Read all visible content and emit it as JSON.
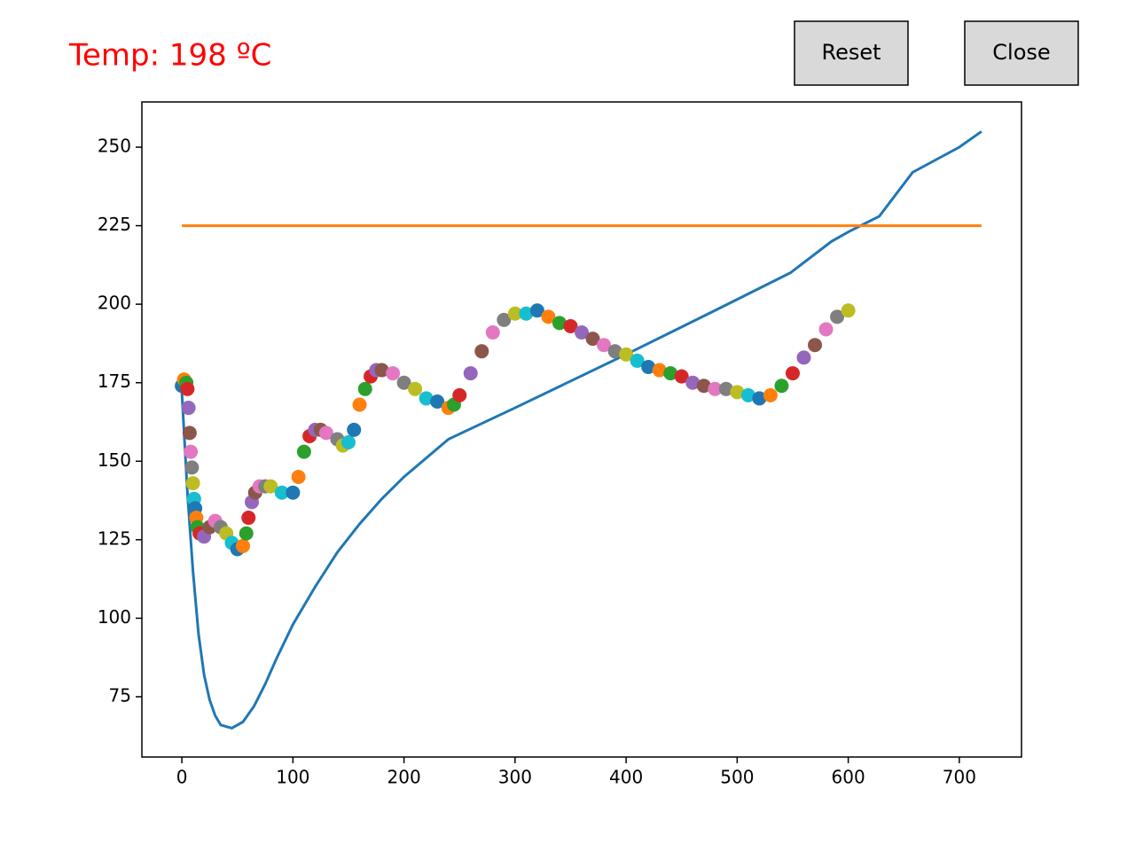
{
  "buttons": [
    "Reset",
    "Close"
  ],
  "chart_data": {
    "type": "line",
    "title": "Temp: 198 ºC",
    "title_color": "#ff0000",
    "xlim": [
      -36,
      756
    ],
    "ylim": [
      55.8,
      264.4
    ],
    "xticks": [
      0,
      100,
      200,
      300,
      400,
      500,
      600,
      700
    ],
    "yticks": [
      75,
      100,
      125,
      150,
      175,
      200,
      225,
      250
    ],
    "grid": false,
    "series": [
      {
        "type": "line",
        "color": "#1f77b4",
        "x": [
          0,
          5,
          10,
          15,
          20,
          25,
          30,
          35,
          45,
          55,
          65,
          75,
          85,
          100,
          120,
          140,
          160,
          180,
          200,
          220,
          240,
          300,
          400,
          480,
          548,
          585,
          600,
          628,
          658,
          700,
          720
        ],
        "values": [
          172,
          140,
          115,
          95,
          82,
          74,
          69,
          66,
          65,
          67,
          72,
          79,
          87,
          98,
          110,
          121,
          130,
          138,
          145,
          151,
          157,
          167,
          184,
          198,
          210,
          220,
          223,
          228,
          242,
          250,
          255
        ]
      },
      {
        "type": "line",
        "color": "#ff7f0e",
        "x": [
          0,
          720
        ],
        "values": [
          225,
          225
        ]
      },
      {
        "type": "scatter",
        "colors": [
          "#1f77b4",
          "#ff7f0e",
          "#2ca02c",
          "#d62728",
          "#9467bd",
          "#8c564b",
          "#e377c2",
          "#7f7f7f",
          "#bcbd22",
          "#17becf"
        ],
        "x": [
          0,
          2,
          4,
          5,
          6,
          7,
          8,
          9,
          10,
          11,
          12,
          13,
          14,
          16,
          20,
          25,
          30,
          35,
          40,
          45,
          50,
          55,
          58,
          60,
          63,
          66,
          70,
          75,
          80,
          90,
          100,
          105,
          110,
          115,
          120,
          125,
          130,
          140,
          145,
          150,
          155,
          160,
          165,
          170,
          175,
          180,
          190,
          200,
          210,
          220,
          230,
          240,
          245,
          250,
          260,
          270,
          280,
          290,
          300,
          310,
          320,
          330,
          340,
          350,
          360,
          370,
          380,
          390,
          400,
          410,
          420,
          430,
          440,
          450,
          460,
          470,
          480,
          490,
          500,
          510,
          520,
          530,
          540,
          550,
          560,
          570,
          580,
          590,
          600
        ],
        "values": [
          174,
          176,
          175,
          173,
          167,
          159,
          153,
          148,
          143,
          138,
          135,
          132,
          129,
          127,
          126,
          129,
          131,
          129,
          127,
          124,
          122,
          123,
          127,
          132,
          137,
          140,
          142,
          142,
          142,
          140,
          140,
          145,
          153,
          158,
          160,
          160,
          159,
          157,
          155,
          156,
          160,
          168,
          173,
          177,
          179,
          179,
          178,
          175,
          173,
          170,
          169,
          167,
          168,
          171,
          178,
          185,
          191,
          195,
          197,
          197,
          198,
          196,
          194,
          193,
          191,
          189,
          187,
          185,
          184,
          182,
          180,
          179,
          178,
          177,
          175,
          174,
          173,
          173,
          172,
          171,
          170,
          171,
          174,
          178,
          183,
          187,
          192,
          196,
          198
        ]
      }
    ]
  }
}
